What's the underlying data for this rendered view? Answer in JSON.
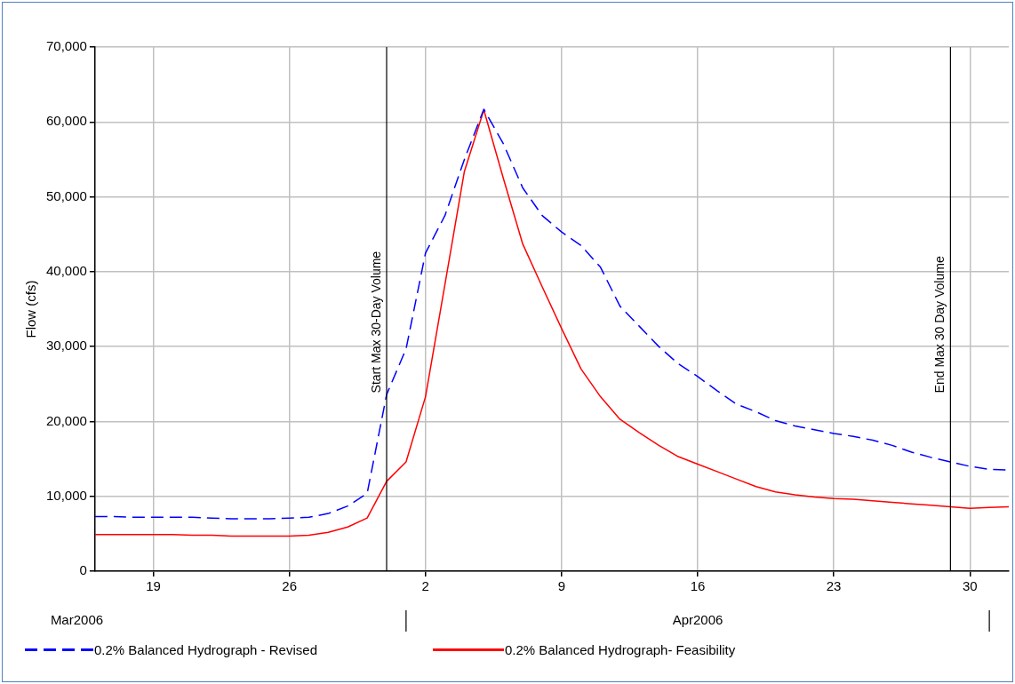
{
  "chart_data": {
    "type": "line",
    "ylabel": "Flow (cfs)",
    "x": [
      "2006-03-16",
      "2006-03-17",
      "2006-03-18",
      "2006-03-19",
      "2006-03-20",
      "2006-03-21",
      "2006-03-22",
      "2006-03-23",
      "2006-03-24",
      "2006-03-25",
      "2006-03-26",
      "2006-03-27",
      "2006-03-28",
      "2006-03-29",
      "2006-03-30",
      "2006-03-31",
      "2006-04-01",
      "2006-04-02",
      "2006-04-03",
      "2006-04-04",
      "2006-04-05",
      "2006-04-06",
      "2006-04-07",
      "2006-04-08",
      "2006-04-09",
      "2006-04-10",
      "2006-04-11",
      "2006-04-12",
      "2006-04-13",
      "2006-04-14",
      "2006-04-15",
      "2006-04-16",
      "2006-04-17",
      "2006-04-18",
      "2006-04-19",
      "2006-04-20",
      "2006-04-21",
      "2006-04-22",
      "2006-04-23",
      "2006-04-24",
      "2006-04-25",
      "2006-04-26",
      "2006-04-27",
      "2006-04-28",
      "2006-04-29",
      "2006-04-30",
      "2006-05-01",
      "2006-05-02"
    ],
    "series": [
      {
        "name": "0.2% Balanced Hydrograph - Revised",
        "color": "#0000ff",
        "line_style": "dashed",
        "values": [
          7300,
          7300,
          7200,
          7200,
          7200,
          7200,
          7100,
          7000,
          7000,
          7000,
          7100,
          7200,
          7700,
          8700,
          10400,
          23600,
          29700,
          42500,
          47500,
          55000,
          61700,
          57100,
          51200,
          47500,
          45300,
          43500,
          40600,
          35400,
          32700,
          30000,
          27700,
          26000,
          24100,
          22300,
          21300,
          20100,
          19400,
          18900,
          18400,
          18000,
          17500,
          16800,
          15900,
          15200,
          14600,
          14000,
          13600,
          13500
        ]
      },
      {
        "name": "0.2% Balanced Hydrograph- Feasibility",
        "color": "#ff0000",
        "line_style": "solid",
        "values": [
          4900,
          4900,
          4900,
          4900,
          4900,
          4800,
          4800,
          4700,
          4700,
          4700,
          4700,
          4800,
          5200,
          5900,
          7100,
          12000,
          14600,
          23300,
          38300,
          53400,
          61600,
          52500,
          43700,
          38000,
          32400,
          27000,
          23300,
          20300,
          18500,
          16800,
          15300,
          14300,
          13300,
          12300,
          11300,
          10600,
          10200,
          9900,
          9700,
          9600,
          9400,
          9200,
          9000,
          8800,
          8600,
          8400,
          8500,
          8600
        ]
      }
    ],
    "xlim": [
      "2006-03-16",
      "2006-05-02"
    ],
    "xticks": [
      {
        "value": "2006-03-19",
        "label": "19"
      },
      {
        "value": "2006-03-26",
        "label": "26"
      },
      {
        "value": "2006-04-02",
        "label": "2"
      },
      {
        "value": "2006-04-09",
        "label": "9"
      },
      {
        "value": "2006-04-16",
        "label": "16"
      },
      {
        "value": "2006-04-23",
        "label": "23"
      },
      {
        "value": "2006-04-30",
        "label": "30"
      }
    ],
    "ylim": [
      0,
      70000
    ],
    "yticks": [
      0,
      {
        "value": 10000,
        "label": "10,000"
      },
      {
        "value": 20000,
        "label": "20,000"
      },
      {
        "value": 30000,
        "label": "30,000"
      },
      {
        "value": 40000,
        "label": "40,000"
      },
      {
        "value": 50000,
        "label": "50,000"
      },
      {
        "value": 60000,
        "label": "60,000"
      },
      {
        "value": 70000,
        "label": "70,000"
      }
    ],
    "ref_lines": [
      {
        "axis": "x",
        "value": "2006-03-31",
        "label": "Start Max 30-Day Volume",
        "color": "#000000"
      },
      {
        "axis": "x",
        "value": "2006-04-29",
        "label": "End Max 30 Day Volume",
        "color": "#000000"
      }
    ],
    "annotations": [
      "Mar2006",
      "Apr2006"
    ],
    "grid": true,
    "legend": "bottom",
    "marker": "none"
  }
}
